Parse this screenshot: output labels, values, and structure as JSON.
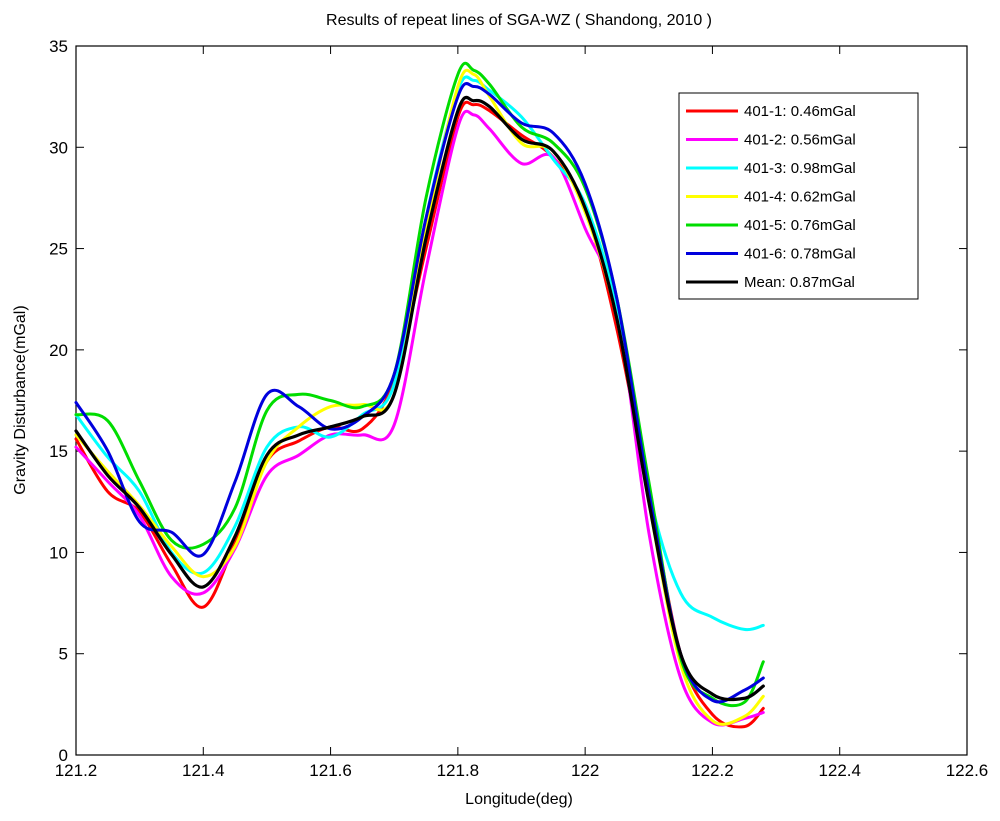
{
  "chart_data": {
    "type": "line",
    "title": "Results of repeat lines of SGA-WZ ( Shandong, 2010 )",
    "xlabel": "Longitude(deg)",
    "ylabel": "Gravity Disturbance(mGal)",
    "xlim": [
      121.2,
      122.6
    ],
    "ylim": [
      0,
      35
    ],
    "xticks": [
      "121.2",
      "121.4",
      "121.6",
      "121.8",
      "122",
      "122.2",
      "122.4",
      "122.6"
    ],
    "xtick_values": [
      121.2,
      121.4,
      121.6,
      121.8,
      122.0,
      122.2,
      122.4,
      122.6
    ],
    "yticks": [
      "0",
      "5",
      "10",
      "15",
      "20",
      "25",
      "30",
      "35"
    ],
    "ytick_values": [
      0,
      5,
      10,
      15,
      20,
      25,
      30,
      35
    ],
    "grid": false,
    "legend_position": "top-right",
    "x": [
      121.2,
      121.25,
      121.3,
      121.35,
      121.4,
      121.45,
      121.5,
      121.55,
      121.6,
      121.65,
      121.7,
      121.75,
      121.8,
      121.825,
      121.85,
      121.9,
      121.95,
      122.0,
      122.05,
      122.1,
      122.15,
      122.2,
      122.25,
      122.28
    ],
    "series": [
      {
        "name": "401-1: 0.46mGal",
        "color": "#ff0000",
        "values": [
          15.6,
          13.0,
          12.0,
          9.4,
          7.3,
          10.5,
          14.5,
          15.5,
          16.2,
          16.1,
          18.5,
          25.0,
          31.5,
          32.1,
          31.8,
          30.6,
          29.5,
          27.0,
          21.0,
          13.0,
          5.0,
          2.0,
          1.4,
          2.3
        ]
      },
      {
        "name": "401-2: 0.56mGal",
        "color": "#ff00ff",
        "values": [
          15.2,
          13.5,
          11.8,
          8.8,
          8.0,
          10.2,
          13.8,
          14.8,
          15.8,
          15.8,
          16.3,
          24.0,
          31.0,
          31.6,
          30.9,
          29.2,
          29.5,
          26.0,
          22.0,
          11.0,
          3.8,
          1.6,
          1.8,
          2.1
        ]
      },
      {
        "name": "401-3: 0.98mGal",
        "color": "#00ffff",
        "values": [
          16.8,
          14.7,
          13.0,
          10.0,
          9.0,
          11.3,
          15.2,
          16.2,
          15.7,
          16.8,
          18.3,
          26.5,
          32.8,
          33.3,
          32.8,
          31.5,
          29.4,
          27.2,
          22.0,
          13.0,
          8.0,
          6.8,
          6.2,
          6.4
        ]
      },
      {
        "name": "401-4: 0.62mGal",
        "color": "#ffff00",
        "values": [
          15.8,
          14.0,
          12.3,
          10.3,
          8.8,
          10.3,
          14.5,
          16.2,
          17.2,
          17.3,
          17.8,
          26.0,
          33.0,
          33.6,
          32.5,
          30.2,
          29.8,
          26.8,
          21.5,
          12.5,
          4.5,
          1.7,
          1.9,
          2.9
        ]
      },
      {
        "name": "401-5: 0.76mGal",
        "color": "#00dd00",
        "values": [
          16.8,
          16.5,
          13.5,
          10.6,
          10.4,
          12.2,
          17.0,
          17.8,
          17.5,
          17.2,
          18.8,
          27.5,
          33.6,
          33.8,
          33.1,
          31.0,
          30.2,
          28.0,
          22.5,
          13.5,
          4.8,
          2.8,
          2.6,
          4.6
        ]
      },
      {
        "name": "401-6: 0.78mGal",
        "color": "#0000dd",
        "values": [
          17.4,
          15.0,
          11.5,
          11.0,
          9.9,
          13.5,
          17.8,
          17.2,
          16.1,
          16.7,
          18.8,
          26.5,
          32.5,
          33.0,
          32.6,
          31.2,
          30.7,
          28.2,
          22.5,
          13.0,
          5.0,
          2.7,
          3.2,
          3.8
        ]
      },
      {
        "name": "Mean: 0.87mGal",
        "color": "#000000",
        "values": [
          16.0,
          13.8,
          12.2,
          9.9,
          8.3,
          10.8,
          14.8,
          15.8,
          16.2,
          16.7,
          17.8,
          25.5,
          31.8,
          32.3,
          32.0,
          30.4,
          29.8,
          27.0,
          21.5,
          12.5,
          5.0,
          3.0,
          2.8,
          3.4
        ]
      }
    ]
  }
}
